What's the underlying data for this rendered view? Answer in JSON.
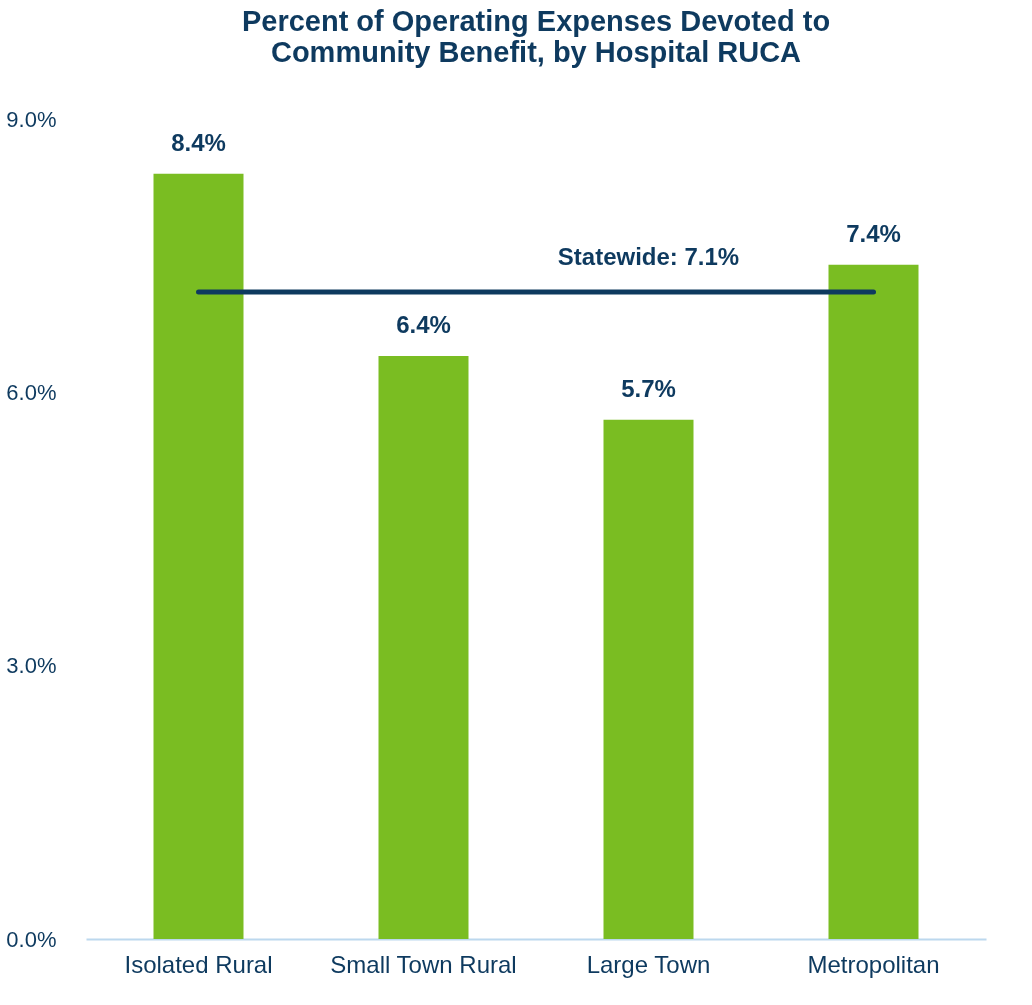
{
  "chart_data": {
    "type": "bar",
    "title": [
      "Percent of Operating Expenses Devoted to",
      "Community Benefit, by Hospital RUCA"
    ],
    "categories": [
      "Isolated Rural",
      "Small Town Rural",
      "Large Town",
      "Metropolitan"
    ],
    "values": [
      8.4,
      6.4,
      5.7,
      7.4
    ],
    "color": "#7abd22",
    "value_labels": [
      "8.4%",
      "6.4%",
      "5.7%",
      "7.4%"
    ],
    "ylim": [
      0,
      9
    ],
    "yticks": [
      {
        "value": 0,
        "label": "0.0%"
      },
      {
        "value": 3,
        "label": "3.0%"
      },
      {
        "value": 6,
        "label": "6.0%"
      },
      {
        "value": 9,
        "label": "9.0%"
      }
    ],
    "ref_lines": [
      {
        "axis": "y",
        "value": 7.1,
        "label": "Statewide: 7.1%",
        "color": "#0e3a5f"
      }
    ],
    "grid": false
  }
}
